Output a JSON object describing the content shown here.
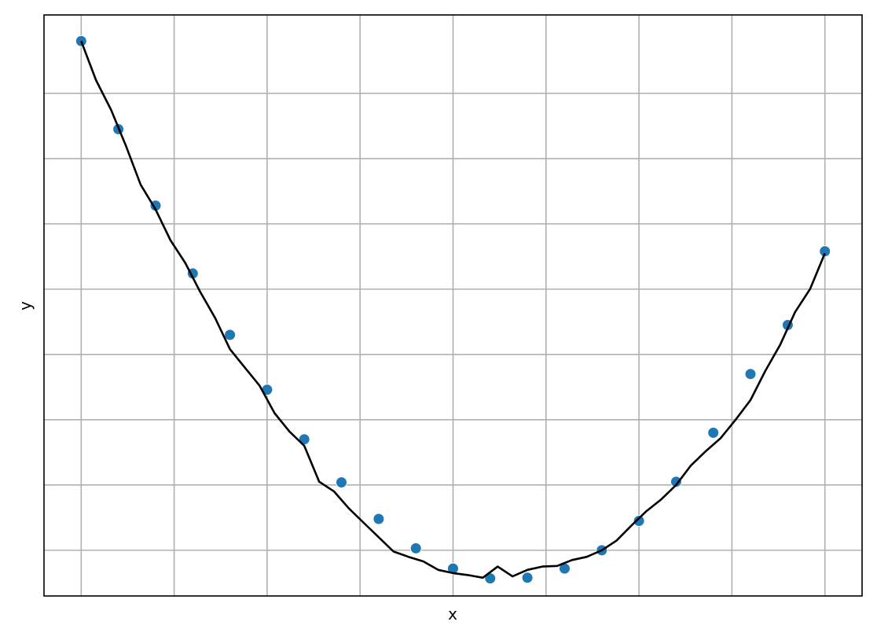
{
  "chart_data": {
    "type": "scatter",
    "title": "",
    "xlabel": "x",
    "ylabel": "y",
    "grid": true,
    "xlim": [
      -0.05,
      1.05
    ],
    "ylim": [
      0.13,
      1.02
    ],
    "x_ticks": [
      0,
      0.125,
      0.25,
      0.375,
      0.5,
      0.625,
      0.75,
      0.875,
      1.0
    ],
    "y_ticks": [
      0.2,
      0.3,
      0.4,
      0.5,
      0.6,
      0.7,
      0.8,
      0.9
    ],
    "colors": {
      "scatter": "#1f77b4",
      "line": "#000000",
      "grid": "#b0b0b0"
    },
    "series": [
      {
        "kind": "scatter",
        "x": [
          0.0,
          0.05,
          0.1,
          0.15,
          0.2,
          0.25,
          0.3,
          0.35,
          0.4,
          0.45,
          0.5,
          0.55,
          0.6,
          0.65,
          0.7,
          0.75,
          0.8,
          0.85,
          0.9,
          0.95,
          1.0
        ],
        "y": [
          0.98,
          0.845,
          0.728,
          0.624,
          0.53,
          0.446,
          0.37,
          0.304,
          0.248,
          0.203,
          0.172,
          0.157,
          0.158,
          0.172,
          0.2,
          0.245,
          0.305,
          0.38,
          0.47,
          0.545,
          0.658
        ]
      },
      {
        "kind": "line",
        "x": [
          0.0,
          0.02,
          0.04,
          0.06,
          0.08,
          0.1,
          0.12,
          0.14,
          0.16,
          0.18,
          0.2,
          0.22,
          0.24,
          0.26,
          0.28,
          0.3,
          0.32,
          0.34,
          0.36,
          0.38,
          0.4,
          0.42,
          0.44,
          0.46,
          0.48,
          0.5,
          0.52,
          0.54,
          0.56,
          0.58,
          0.6,
          0.62,
          0.64,
          0.66,
          0.68,
          0.7,
          0.72,
          0.74,
          0.76,
          0.78,
          0.8,
          0.82,
          0.84,
          0.86,
          0.88,
          0.9,
          0.92,
          0.94,
          0.96,
          0.98,
          1.0
        ],
        "y": [
          0.98,
          0.92,
          0.875,
          0.82,
          0.76,
          0.722,
          0.675,
          0.64,
          0.596,
          0.556,
          0.508,
          0.48,
          0.452,
          0.41,
          0.382,
          0.36,
          0.305,
          0.29,
          0.264,
          0.242,
          0.22,
          0.198,
          0.19,
          0.183,
          0.17,
          0.165,
          0.162,
          0.158,
          0.175,
          0.16,
          0.17,
          0.175,
          0.176,
          0.185,
          0.19,
          0.2,
          0.215,
          0.238,
          0.26,
          0.278,
          0.3,
          0.33,
          0.352,
          0.372,
          0.4,
          0.43,
          0.475,
          0.515,
          0.565,
          0.6,
          0.655
        ]
      }
    ]
  }
}
